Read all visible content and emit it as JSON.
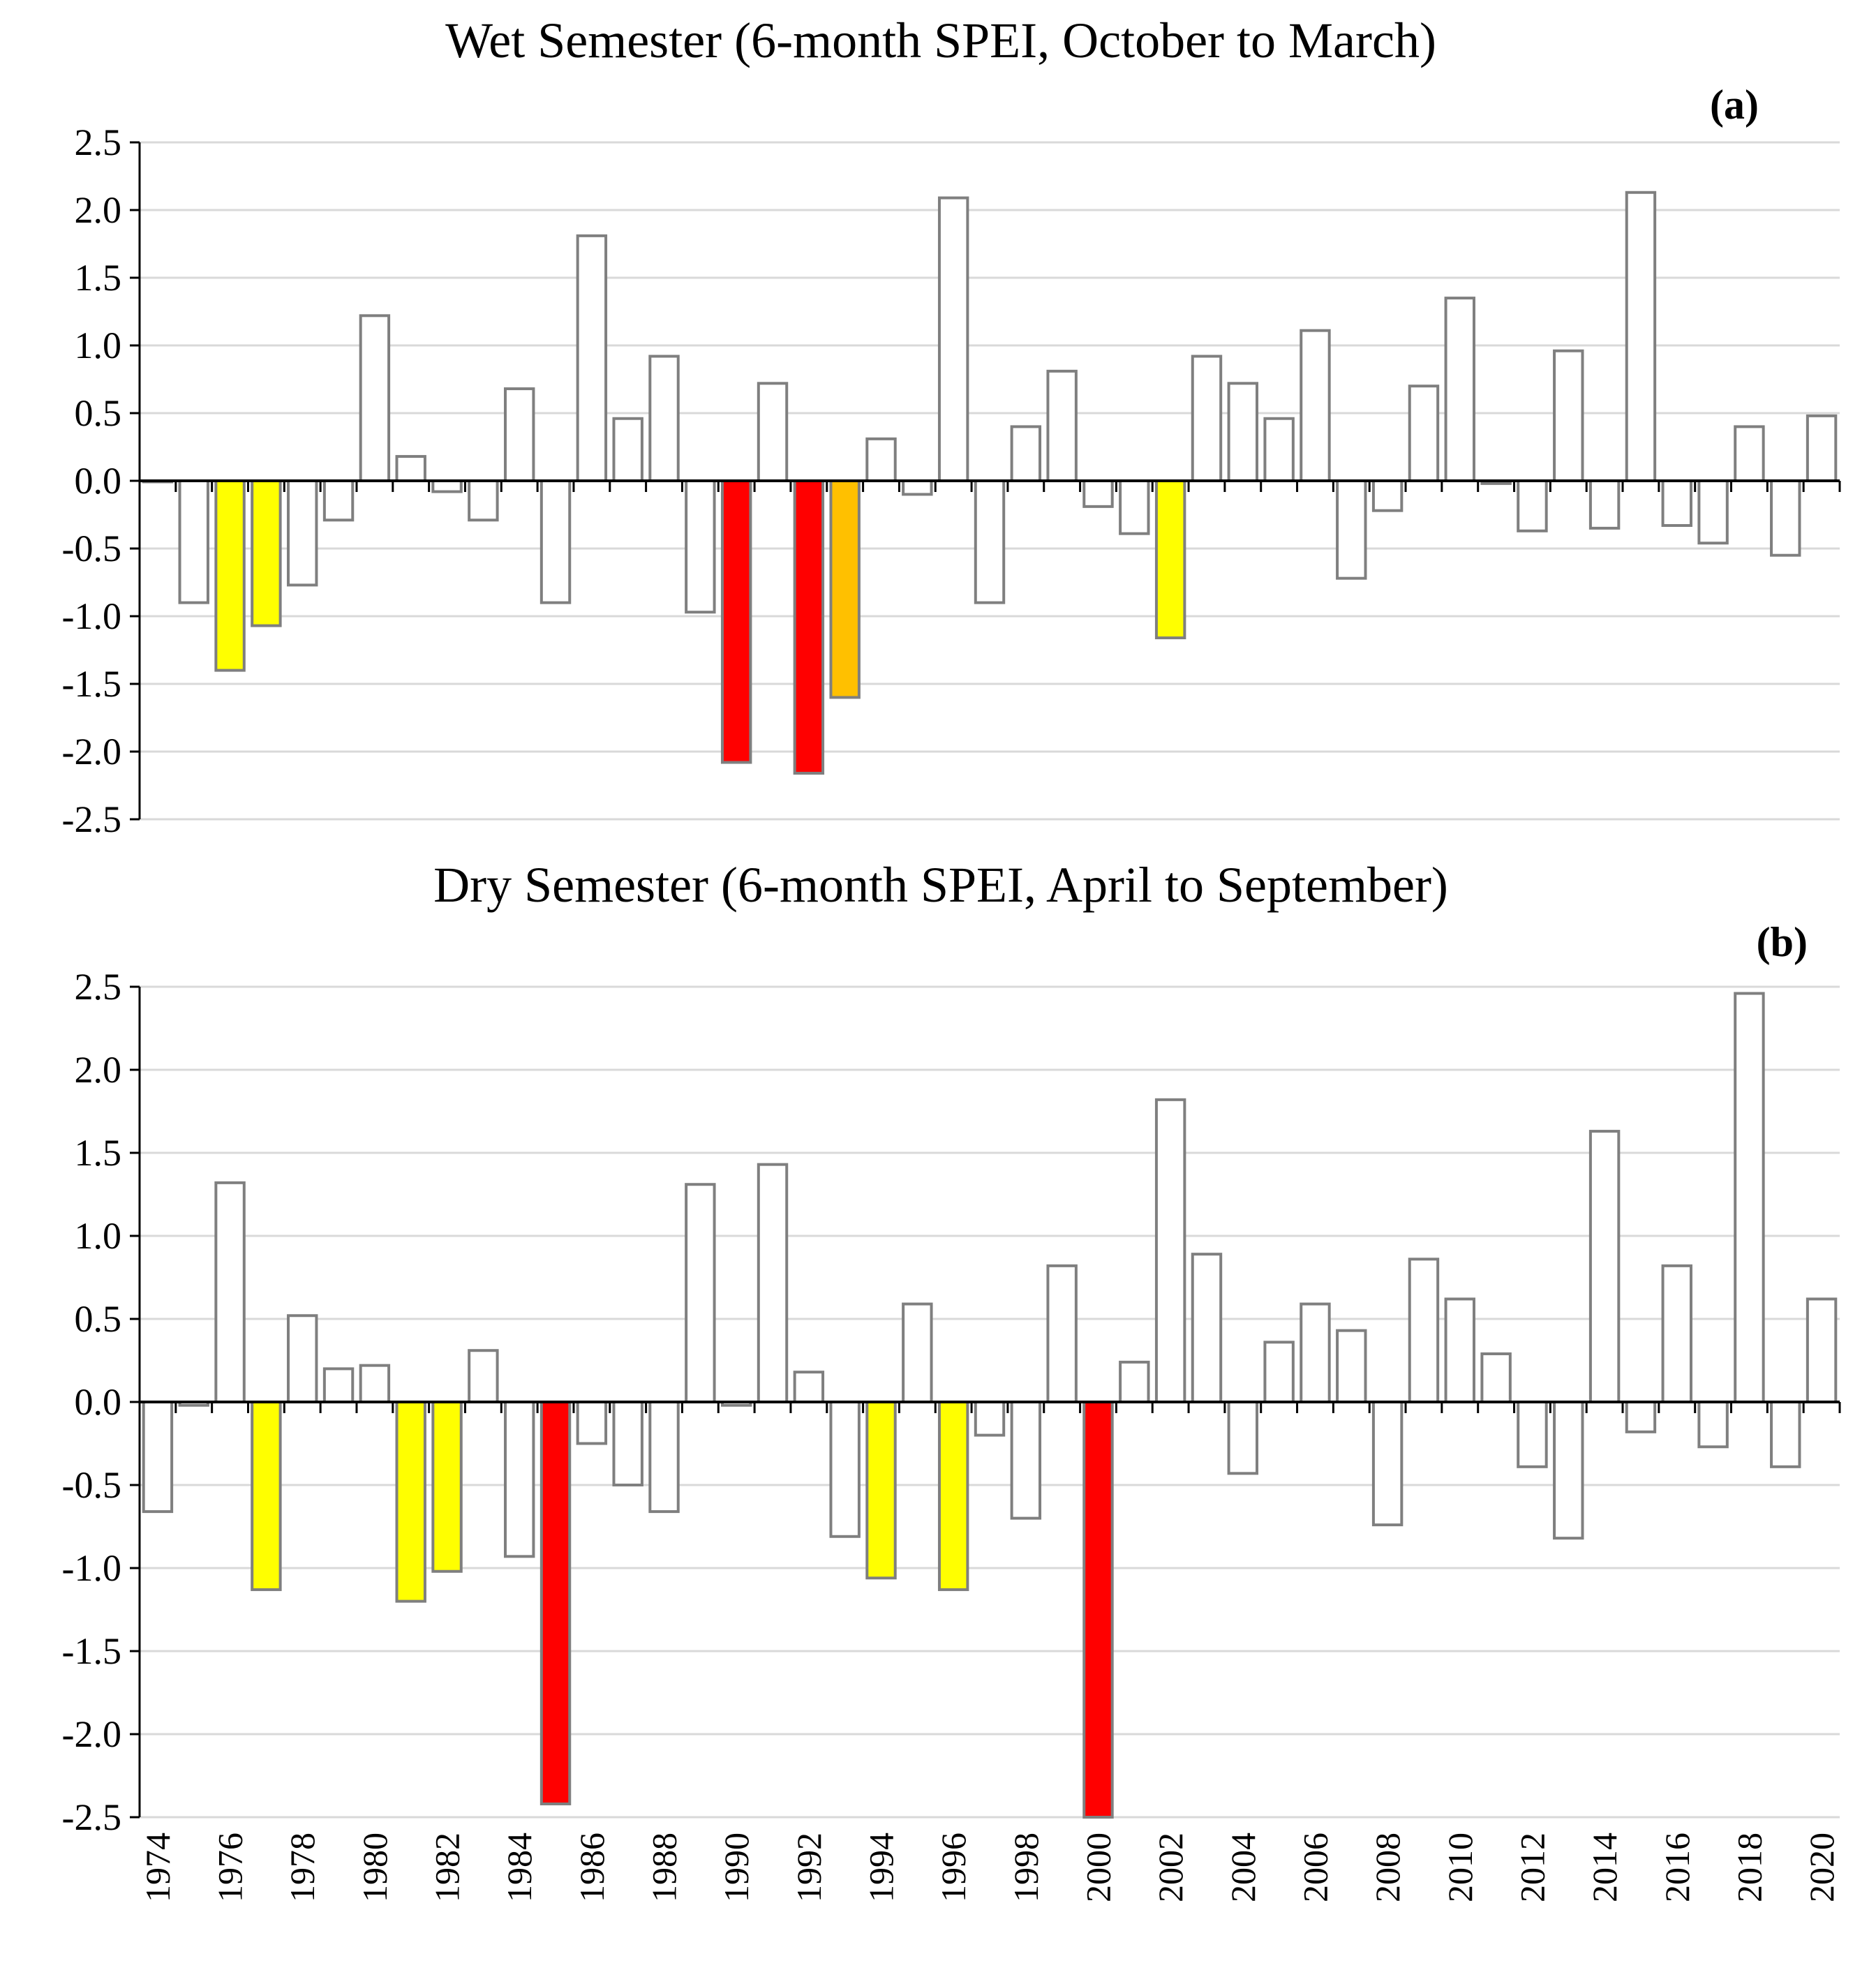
{
  "chart_data": [
    {
      "type": "bar",
      "panel": "a",
      "panel_label": "a",
      "title": "Wet Semester (6-month SPEI, October to March)",
      "ylim": [
        -2.5,
        2.5
      ],
      "yticks": [
        "2.5",
        "2.0",
        "1.5",
        "1.0",
        "0.5",
        "0.0",
        "-0.5",
        "-1.0",
        "-1.5",
        "-2.0",
        "-2.5"
      ],
      "grid": true,
      "categories": [
        1974,
        1975,
        1976,
        1977,
        1978,
        1979,
        1980,
        1981,
        1982,
        1983,
        1984,
        1985,
        1986,
        1987,
        1988,
        1989,
        1990,
        1991,
        1992,
        1993,
        1994,
        1995,
        1996,
        1997,
        1998,
        1999,
        2000,
        2001,
        2002,
        2003,
        2004,
        2005,
        2006,
        2007,
        2008,
        2009,
        2010,
        2011,
        2012,
        2013,
        2014,
        2015,
        2016,
        2017,
        2018,
        2019,
        2020
      ],
      "values": [
        0.0,
        -0.9,
        -1.4,
        -1.07,
        -0.77,
        -0.29,
        1.22,
        0.18,
        -0.08,
        -0.29,
        0.68,
        -0.9,
        1.81,
        0.46,
        0.92,
        -0.97,
        -2.08,
        0.72,
        -2.16,
        -1.6,
        0.31,
        -0.1,
        2.09,
        -0.9,
        0.4,
        0.81,
        -0.19,
        -0.39,
        -1.16,
        0.92,
        0.72,
        0.46,
        1.11,
        -0.72,
        -0.22,
        0.7,
        1.35,
        -0.02,
        -0.37,
        0.96,
        -0.35,
        2.13,
        -0.33,
        -0.46,
        0.4,
        -0.55,
        0.48
      ],
      "colors": [
        "#ffffff",
        "#ffffff",
        "#ffff00",
        "#ffff00",
        "#ffffff",
        "#ffffff",
        "#ffffff",
        "#ffffff",
        "#ffffff",
        "#ffffff",
        "#ffffff",
        "#ffffff",
        "#ffffff",
        "#ffffff",
        "#ffffff",
        "#ffffff",
        "#ff0000",
        "#ffffff",
        "#ff0000",
        "#ffc000",
        "#ffffff",
        "#ffffff",
        "#ffffff",
        "#ffffff",
        "#ffffff",
        "#ffffff",
        "#ffffff",
        "#ffffff",
        "#ffff00",
        "#ffffff",
        "#ffffff",
        "#ffffff",
        "#ffffff",
        "#ffffff",
        "#ffffff",
        "#ffffff",
        "#ffffff",
        "#ffffff",
        "#ffffff",
        "#ffffff",
        "#ffffff",
        "#ffffff",
        "#ffffff",
        "#ffffff",
        "#ffffff",
        "#ffffff",
        "#ffffff"
      ]
    },
    {
      "type": "bar",
      "panel": "b",
      "panel_label": "b",
      "title": "Dry Semester (6-month SPEI, April to September)",
      "ylim": [
        -2.5,
        2.5
      ],
      "yticks": [
        "2.5",
        "2.0",
        "1.5",
        "1.0",
        "0.5",
        "0.0",
        "-0.5",
        "-1.0",
        "-1.5",
        "-2.0",
        "-2.5"
      ],
      "grid": true,
      "xtick_labels": [
        "1974",
        "1976",
        "1978",
        "1980",
        "1982",
        "1984",
        "1986",
        "1988",
        "1990",
        "1992",
        "1994",
        "1996",
        "1998",
        "2000",
        "2002",
        "2004",
        "2006",
        "2008",
        "2010",
        "2012",
        "2014",
        "2016",
        "2018",
        "2020"
      ],
      "categories": [
        1974,
        1975,
        1976,
        1977,
        1978,
        1979,
        1980,
        1981,
        1982,
        1983,
        1984,
        1985,
        1986,
        1987,
        1988,
        1989,
        1990,
        1991,
        1992,
        1993,
        1994,
        1995,
        1996,
        1997,
        1998,
        1999,
        2000,
        2001,
        2002,
        2003,
        2004,
        2005,
        2006,
        2007,
        2008,
        2009,
        2010,
        2011,
        2012,
        2013,
        2014,
        2015,
        2016,
        2017,
        2018,
        2019,
        2020
      ],
      "values": [
        -0.66,
        -0.02,
        1.32,
        -1.13,
        0.52,
        0.2,
        0.22,
        -1.2,
        -1.02,
        0.31,
        -0.93,
        -2.42,
        -0.25,
        -0.5,
        -0.66,
        1.31,
        -0.02,
        1.43,
        0.18,
        -0.81,
        -1.06,
        0.59,
        -1.13,
        -0.2,
        -0.7,
        0.82,
        -2.5,
        0.24,
        1.82,
        0.89,
        -0.43,
        0.36,
        0.59,
        0.43,
        -0.74,
        0.86,
        0.62,
        0.29,
        -0.39,
        -0.82,
        1.63,
        -0.18,
        0.82,
        -0.27,
        2.46,
        -0.39,
        0.62
      ],
      "colors": [
        "#ffffff",
        "#ffffff",
        "#ffffff",
        "#ffff00",
        "#ffffff",
        "#ffffff",
        "#ffffff",
        "#ffff00",
        "#ffff00",
        "#ffffff",
        "#ffffff",
        "#ff0000",
        "#ffffff",
        "#ffffff",
        "#ffffff",
        "#ffffff",
        "#ffffff",
        "#ffffff",
        "#ffffff",
        "#ffffff",
        "#ffff00",
        "#ffffff",
        "#ffff00",
        "#ffffff",
        "#ffffff",
        "#ffffff",
        "#ff0000",
        "#ffffff",
        "#ffffff",
        "#ffffff",
        "#ffffff",
        "#ffffff",
        "#ffffff",
        "#ffffff",
        "#ffffff",
        "#ffffff",
        "#ffffff",
        "#ffffff",
        "#ffffff",
        "#ffffff",
        "#ffffff",
        "#ffffff",
        "#ffffff",
        "#ffffff",
        "#ffffff",
        "#ffffff",
        "#ffffff"
      ]
    }
  ],
  "colors": {
    "severe": "#ff0000",
    "moderate_high": "#ffc000",
    "moderate": "#ffff00",
    "normal": "#ffffff",
    "bar_stroke": "#7f7f7f",
    "gridline": "#d9d9d9",
    "axis": "#000000"
  }
}
